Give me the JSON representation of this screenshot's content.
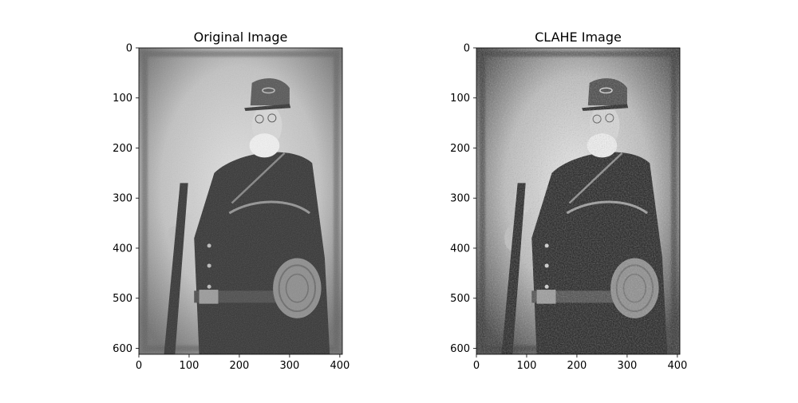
{
  "chart_data": [
    {
      "type": "image",
      "title": "Original Image",
      "image_shape": [
        612,
        405
      ],
      "xticks": [
        0,
        100,
        200,
        300,
        400
      ],
      "yticks": [
        0,
        100,
        200,
        300,
        400,
        500,
        600
      ],
      "xlim": [
        0,
        405
      ],
      "ylim": [
        612,
        0
      ],
      "cmap": "gray",
      "content": "grayscale vintage portrait of a bearded soldier in a kepi cap and uniform holding a rifle with a canteen"
    },
    {
      "type": "image",
      "title": "CLAHE Image",
      "image_shape": [
        612,
        405
      ],
      "xticks": [
        0,
        100,
        200,
        300,
        400
      ],
      "yticks": [
        0,
        100,
        200,
        300,
        400,
        500,
        600
      ],
      "xlim": [
        0,
        405
      ],
      "ylim": [
        612,
        0
      ],
      "cmap": "gray",
      "content": "same portrait after contrast-limited adaptive histogram equalization with stronger local contrast"
    }
  ]
}
